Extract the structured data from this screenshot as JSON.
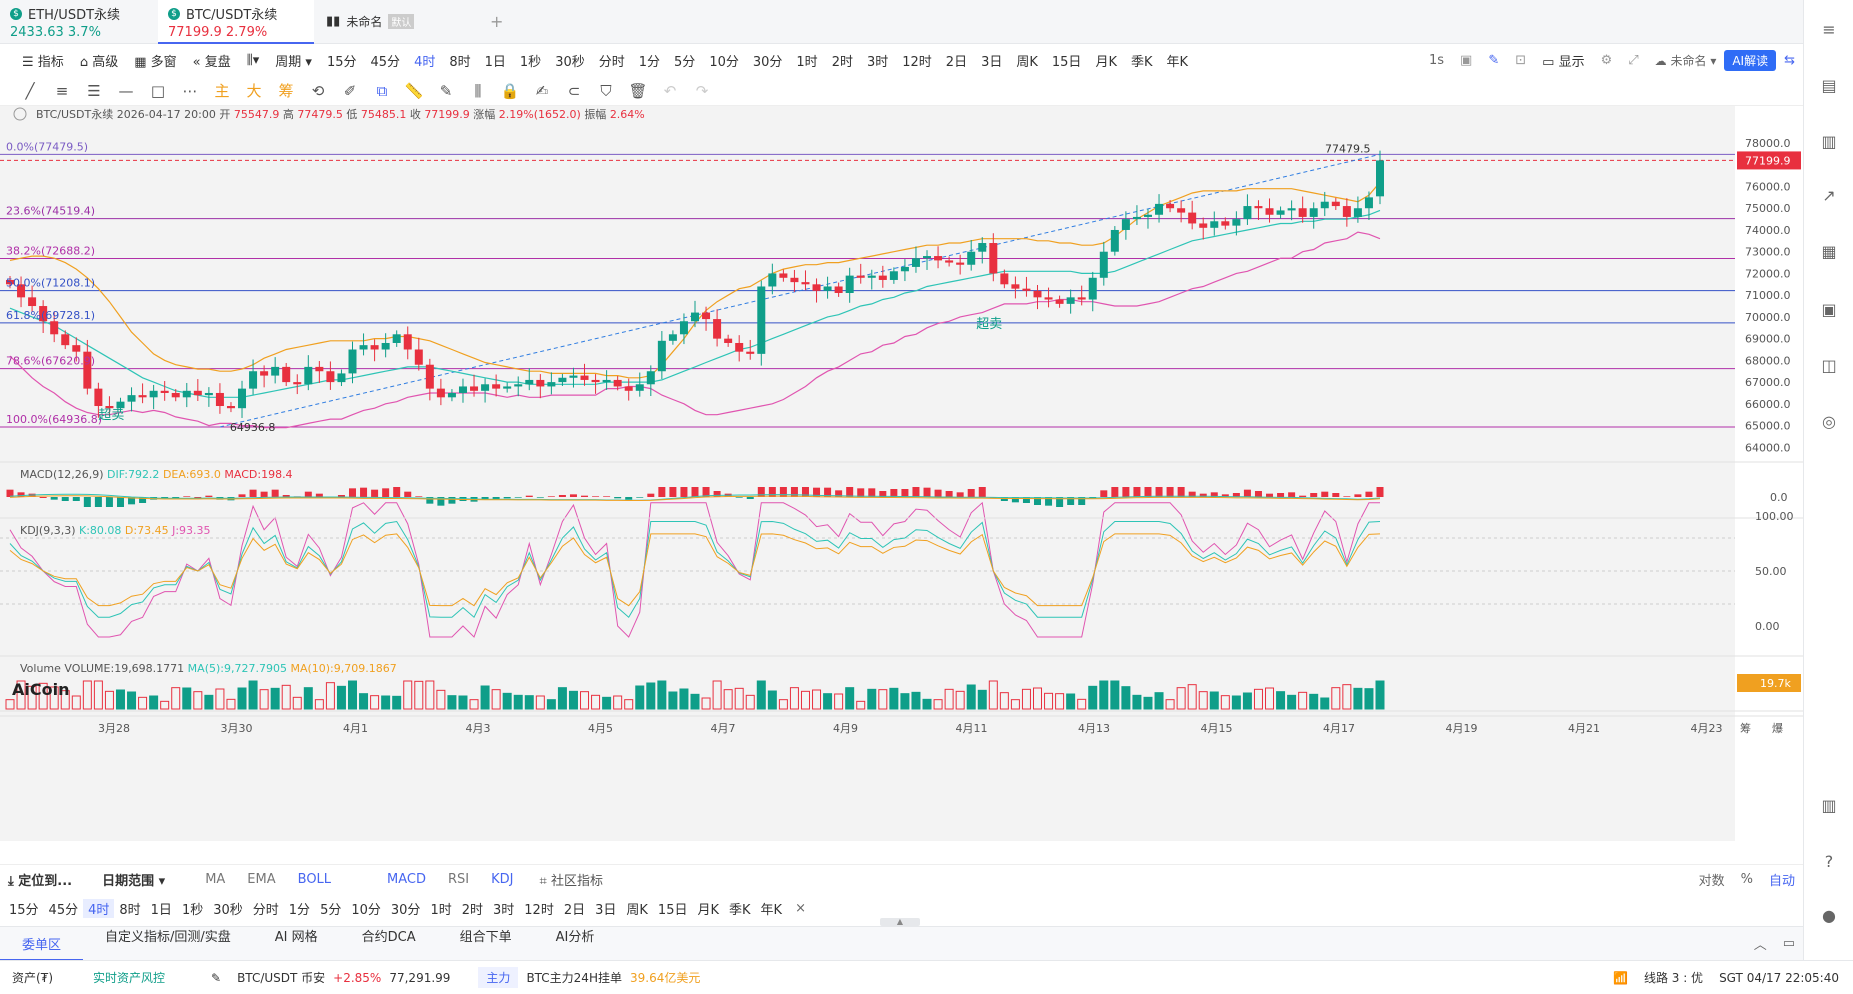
{
  "tabs": [
    {
      "name": "ETH/USDT永续",
      "price": "2433.63",
      "change": "3.7%"
    },
    {
      "name": "BTC/USDT永续",
      "price": "77199.9",
      "change": "2.79%"
    },
    {
      "name": "未命名",
      "badge": "默认"
    }
  ],
  "toolbar1": {
    "items": [
      "指标",
      "高级",
      "多窗",
      "复盘",
      "",
      "周期"
    ],
    "intervals": [
      "15分",
      "45分",
      "4时",
      "8时",
      "1日",
      "1秒",
      "30秒",
      "分时",
      "1分",
      "5分",
      "10分",
      "30分",
      "1时",
      "2时",
      "3时",
      "12时",
      "2日",
      "3日",
      "周K",
      "15日",
      "月K",
      "季K",
      "年K"
    ],
    "active_interval": "4时",
    "right": {
      "secs": "1s",
      "display": "显示",
      "template": "未命名",
      "ai": "AI解读"
    }
  },
  "toolbar2": {
    "chars": [
      "主",
      "大",
      "筹"
    ]
  },
  "chart_data": {
    "type": "candlestick",
    "symbol": "BTC/USDT永续",
    "ohlc_header": {
      "time": "2026-04-17 20:00",
      "open": "75547.9",
      "high": "77479.5",
      "low": "75485.1",
      "close": "77199.9",
      "change_pct": "2.19%(1652.0)",
      "amplitude": "2.64%"
    },
    "labels": {
      "open": "开",
      "high": "高",
      "low": "低",
      "close": "收",
      "change": "涨幅",
      "amp": "振幅"
    },
    "y_ticks": [
      "78000.0",
      "77000.0",
      "76000.0",
      "75000.0",
      "74000.0",
      "73000.0",
      "72000.0",
      "71000.0",
      "70000.0",
      "69000.0",
      "68000.0",
      "67000.0",
      "66000.0",
      "65000.0",
      "64000.0"
    ],
    "ylim": [
      63600,
      78600
    ],
    "last_price": "77199.9",
    "x_labels": [
      "3月28",
      "3月30",
      "4月1",
      "4月3",
      "4月5",
      "4月7",
      "4月9",
      "4月11",
      "4月13",
      "4月15",
      "4月17",
      "4月19",
      "4月21",
      "4月23"
    ],
    "fib": [
      {
        "label": "0.0%(77479.5)",
        "value": 77479.5,
        "color": "#7b5cc4"
      },
      {
        "label": "23.6%(74519.4)",
        "value": 74519.4,
        "color": "#9b2fa6"
      },
      {
        "label": "38.2%(72688.2)",
        "value": 72688.2,
        "color": "#b02fa8"
      },
      {
        "label": "50.0%(71208.1)",
        "value": 71208.1,
        "color": "#3451c6"
      },
      {
        "label": "61.8%(69728.1)",
        "value": 69728.1,
        "color": "#3451c6"
      },
      {
        "label": "78.6%(67620.9)",
        "value": 67620.9,
        "color": "#b02fa8"
      },
      {
        "label": "100.0%(64936.8)",
        "value": 64936.8,
        "color": "#b02fa8"
      }
    ],
    "annotations": {
      "high": "77479.5",
      "low": "64936.8",
      "oversold": "超卖"
    },
    "close": [
      71500,
      70900,
      70500,
      69800,
      69200,
      68700,
      68400,
      66700,
      65900,
      65800,
      66100,
      66400,
      66300,
      66600,
      66500,
      66300,
      66600,
      66400,
      66500,
      65900,
      65800,
      66700,
      67500,
      67300,
      67700,
      67000,
      66900,
      67700,
      67500,
      67000,
      67400,
      68500,
      68700,
      68500,
      68800,
      69200,
      68500,
      67800,
      66700,
      66300,
      66500,
      66800,
      66600,
      66900,
      66700,
      66800,
      66900,
      67100,
      66800,
      67000,
      67200,
      67300,
      67100,
      67000,
      67100,
      66800,
      66600,
      66900,
      67500,
      68900,
      69200,
      69800,
      70200,
      69900,
      69000,
      68800,
      68400,
      68300,
      71400,
      72000,
      71800,
      71600,
      71500,
      71200,
      71400,
      71100,
      71900,
      71800,
      71900,
      71700,
      72100,
      72300,
      72700,
      72800,
      72600,
      72500,
      72400,
      73000,
      73400,
      72000,
      71500,
      71300,
      71200,
      70900,
      70800,
      70600,
      70900,
      70800,
      71800,
      73000,
      74000,
      74500,
      74600,
      74700,
      75200,
      75000,
      74800,
      74300,
      74100,
      74400,
      74200,
      74500,
      75100,
      75000,
      74700,
      74900,
      75000,
      74600,
      75000,
      75300,
      75100,
      74600,
      75000,
      75500,
      77200
    ],
    "open": [
      71700,
      71500,
      70900,
      70500,
      69800,
      69200,
      68700,
      68400,
      66700,
      65900,
      65800,
      66100,
      66400,
      66300,
      66600,
      66500,
      66300,
      66600,
      66400,
      66500,
      65900,
      65800,
      66700,
      67500,
      67300,
      67700,
      67000,
      66900,
      67700,
      67500,
      67000,
      67400,
      68500,
      68700,
      68500,
      68800,
      69200,
      68500,
      67800,
      66700,
      66300,
      66500,
      66800,
      66600,
      66900,
      66700,
      66800,
      66900,
      67100,
      66800,
      67000,
      67200,
      67300,
      67100,
      67000,
      67100,
      66800,
      66600,
      66900,
      67500,
      68900,
      69200,
      69800,
      70200,
      69900,
      69000,
      68800,
      68400,
      68300,
      71400,
      72000,
      71800,
      71600,
      71500,
      71200,
      71400,
      71100,
      71900,
      71800,
      71900,
      71700,
      72100,
      72300,
      72700,
      72800,
      72600,
      72500,
      72400,
      73000,
      73400,
      72000,
      71500,
      71300,
      71200,
      70900,
      70800,
      70600,
      70900,
      70800,
      71800,
      73000,
      74000,
      74500,
      74600,
      74700,
      75200,
      75000,
      74800,
      74300,
      74100,
      74400,
      74200,
      74500,
      75100,
      75000,
      74700,
      74900,
      75000,
      74600,
      75000,
      75300,
      75100,
      74600,
      75000,
      75548
    ],
    "boll_upper": [
      72600,
      72700,
      72800,
      72800,
      72700,
      72500,
      72200,
      71800,
      71300,
      70700,
      70000,
      69300,
      68800,
      68300,
      68000,
      67800,
      67700,
      67600,
      67600,
      67500,
      67500,
      67600,
      67800,
      68100,
      68300,
      68500,
      68600,
      68700,
      68800,
      68900,
      68900,
      68900,
      68900,
      69000,
      69000,
      69100,
      69100,
      69000,
      68900,
      68700,
      68500,
      68300,
      68100,
      67900,
      67800,
      67700,
      67600,
      67500,
      67500,
      67400,
      67400,
      67400,
      67400,
      67400,
      67300,
      67300,
      67200,
      67200,
      67300,
      67800,
      68400,
      69000,
      69700,
      70300,
      70700,
      71000,
      71300,
      71400,
      71700,
      72000,
      72200,
      72300,
      72400,
      72400,
      72500,
      72500,
      72600,
      72700,
      72800,
      72900,
      73000,
      73100,
      73200,
      73300,
      73300,
      73400,
      73400,
      73500,
      73600,
      73600,
      73600,
      73600,
      73600,
      73500,
      73500,
      73400,
      73400,
      73300,
      73300,
      73400,
      73700,
      74100,
      74500,
      74800,
      75100,
      75300,
      75500,
      75700,
      75800,
      75800,
      75800,
      75800,
      75900,
      75900,
      75900,
      75900,
      75900,
      75800,
      75700,
      75600,
      75500,
      75400,
      75300,
      75600,
      76200
    ],
    "boll_mid": [
      70400,
      70200,
      70000,
      69800,
      69600,
      69300,
      69000,
      68700,
      68400,
      68100,
      67800,
      67500,
      67200,
      67000,
      66800,
      66600,
      66500,
      66400,
      66300,
      66300,
      66300,
      66300,
      66400,
      66500,
      66600,
      66700,
      66800,
      66900,
      67000,
      67100,
      67100,
      67200,
      67300,
      67400,
      67500,
      67600,
      67700,
      67700,
      67700,
      67600,
      67500,
      67400,
      67300,
      67200,
      67100,
      67000,
      67000,
      66900,
      66900,
      66900,
      66900,
      66900,
      66900,
      66900,
      67000,
      67000,
      67000,
      67000,
      67000,
      67100,
      67300,
      67500,
      67700,
      67900,
      68100,
      68300,
      68500,
      68600,
      68800,
      69000,
      69200,
      69400,
      69600,
      69800,
      70000,
      70100,
      70300,
      70500,
      70600,
      70800,
      70900,
      71100,
      71200,
      71400,
      71500,
      71600,
      71700,
      71800,
      71900,
      72000,
      72100,
      72100,
      72100,
      72100,
      72100,
      72100,
      72100,
      72000,
      72000,
      72000,
      72100,
      72300,
      72500,
      72700,
      72900,
      73100,
      73300,
      73500,
      73600,
      73700,
      73800,
      73900,
      74000,
      74100,
      74200,
      74300,
      74300,
      74400,
      74400,
      74500,
      74500,
      74500,
      74600,
      74700,
      74900
    ],
    "boll_lower": [
      68200,
      67700,
      67200,
      66800,
      66500,
      66100,
      65800,
      65600,
      65500,
      65500,
      65600,
      65700,
      65600,
      65700,
      65600,
      65400,
      65300,
      65200,
      65000,
      65100,
      65100,
      65000,
      65000,
      64900,
      64900,
      64900,
      65000,
      65100,
      65200,
      65300,
      65300,
      65500,
      65700,
      65800,
      66000,
      66100,
      66300,
      66400,
      66500,
      66500,
      66500,
      66500,
      66500,
      66500,
      66400,
      66300,
      66400,
      66300,
      66300,
      66400,
      66400,
      66400,
      66400,
      66400,
      66700,
      66700,
      66800,
      66800,
      66700,
      66400,
      66200,
      66000,
      65700,
      65500,
      65500,
      65600,
      65700,
      65800,
      65900,
      66000,
      66200,
      66500,
      66800,
      67200,
      67500,
      67700,
      68000,
      68300,
      68400,
      68700,
      68800,
      69100,
      69200,
      69500,
      69700,
      69800,
      70000,
      70100,
      70200,
      70400,
      70600,
      70600,
      70600,
      70700,
      70700,
      70800,
      70800,
      70700,
      70700,
      70600,
      70500,
      70500,
      70500,
      70600,
      70700,
      70900,
      71100,
      71300,
      71400,
      71600,
      71800,
      72000,
      72100,
      72300,
      72500,
      72700,
      72700,
      73000,
      73100,
      73400,
      73500,
      73600,
      73900,
      73800,
      73600
    ],
    "macd": {
      "label": "MACD(12,26,9)",
      "dif": "DIF:792.2",
      "dea": "DEA:693.0",
      "macd": "MACD:198.4",
      "zero_tick": "0.0"
    },
    "kdj": {
      "label": "KDJ(9,3,3)",
      "k": "K:80.08",
      "d": "D:73.45",
      "j": "J:93.35",
      "ticks": [
        "100.00",
        "50.00",
        "0.00"
      ]
    },
    "volume": {
      "label": "Volume",
      "vol": "VOLUME:19,698.1771",
      "ma5": "MA(5):9,727.7905",
      "ma10": "MA(10):9,709.1867",
      "last": "19.7k"
    }
  },
  "logo": "AiCoin",
  "axis_corner": {
    "a": "筹",
    "b": "爆"
  },
  "bottom1": {
    "locate": "定位到...",
    "range": "日期范围",
    "inds": [
      "MA",
      "EMA",
      "BOLL",
      "MACD",
      "RSI",
      "KDJ"
    ],
    "community": "社区指标",
    "right": [
      "对数",
      "%",
      "自动"
    ]
  },
  "bottom2": {
    "intervals": [
      "15分",
      "45分",
      "4时",
      "8时",
      "1日",
      "1秒",
      "30秒",
      "分时",
      "1分",
      "5分",
      "10分",
      "30分",
      "1时",
      "2时",
      "3时",
      "12时",
      "2日",
      "3日",
      "周K",
      "15日",
      "月K",
      "季K",
      "年K"
    ],
    "close": "×"
  },
  "bottom3": {
    "tabs": [
      "委单区",
      "自定义指标/回测/实盘",
      "AI 网格",
      "合约DCA",
      "组合下单",
      "AI分析"
    ]
  },
  "status": {
    "assets": "资产(₮)",
    "risk": "实时资产风控",
    "pair": "BTC/USDT 币安",
    "chg": "+2.85%",
    "price": "77,291.99",
    "main": "主力",
    "main_text": "BTC主力24H挂单",
    "main_val": "39.64亿美元",
    "line": "线路 3 : 优",
    "time": "SGT 04/17 22:05:40"
  },
  "colors": {
    "up": "#0f9e89",
    "down": "#e8303f",
    "accent": "#4766f0",
    "ma_orange": "#f0a020",
    "ma_teal": "#2ec4b6",
    "ma_pink": "#e055b0"
  }
}
